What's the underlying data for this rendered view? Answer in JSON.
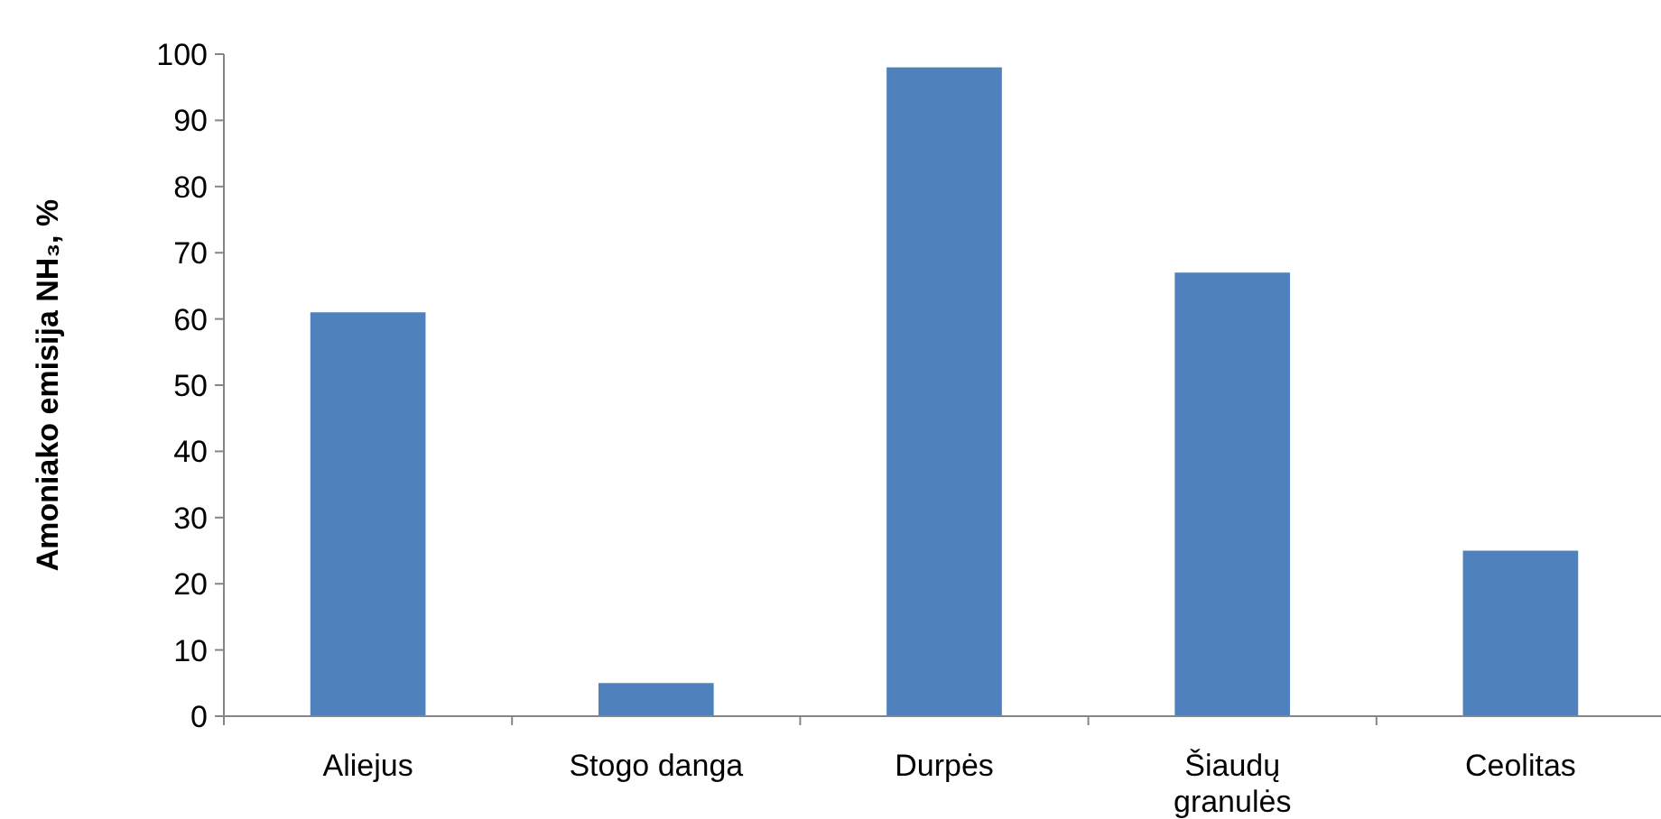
{
  "chart_data": {
    "type": "bar",
    "ylabel": "Amoniako emisija NH₃, %",
    "categories": [
      "Aliejus",
      "Stogo danga",
      "Durpės",
      "Šiaudų granulės",
      "Ceolitas"
    ],
    "values": [
      61,
      5,
      98,
      67,
      25
    ],
    "color": "#4f81bd",
    "ylim": [
      0,
      100
    ],
    "yticks": [
      0,
      10,
      20,
      30,
      40,
      50,
      60,
      70,
      80,
      90,
      100
    ],
    "grid": false
  }
}
